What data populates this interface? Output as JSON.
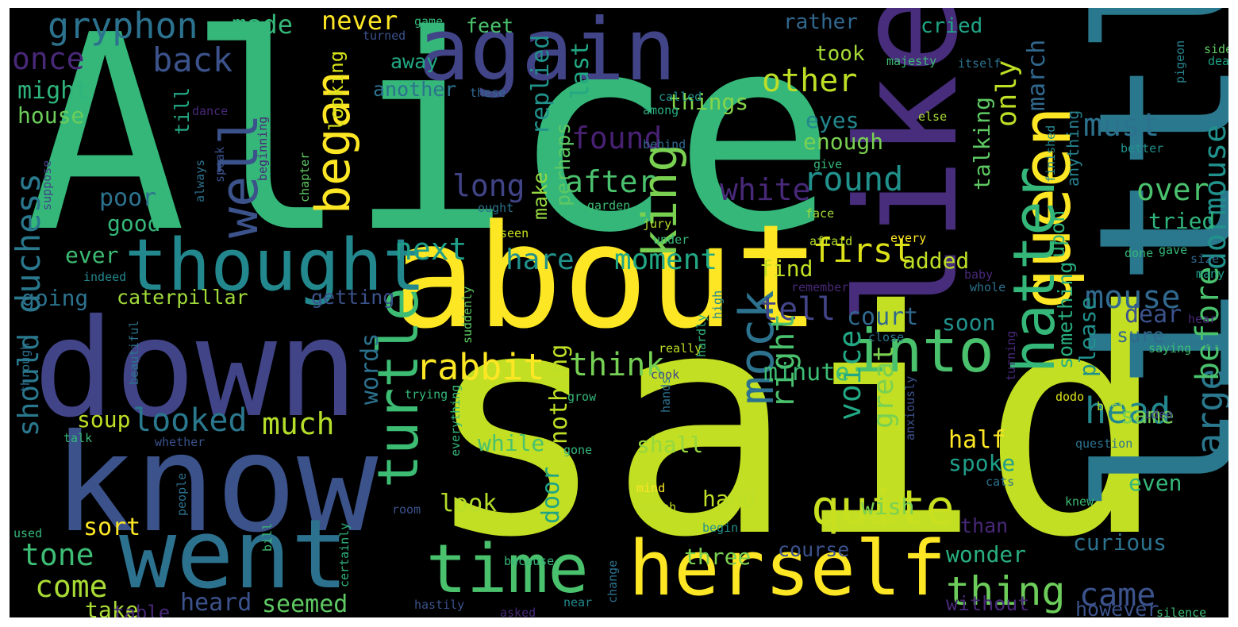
{
  "wordcloud": {
    "background": "#000000",
    "words": [
      {
        "text": "Alice",
        "color": "#35b779"
      },
      {
        "text": "said",
        "color": "#c2df23"
      },
      {
        "text": "little",
        "color": "#2a788e"
      },
      {
        "text": "about",
        "color": "#fde725"
      },
      {
        "text": "like",
        "color": "#472d7b"
      },
      {
        "text": "down",
        "color": "#414487"
      },
      {
        "text": "know",
        "color": "#3b528b"
      },
      {
        "text": "went",
        "color": "#2c728e"
      },
      {
        "text": "again",
        "color": "#414487"
      },
      {
        "text": "herself",
        "color": "#fde725"
      },
      {
        "text": "thought",
        "color": "#23888e"
      },
      {
        "text": "queen",
        "color": "#fde725"
      },
      {
        "text": "time",
        "color": "#4ac16d"
      },
      {
        "text": "into",
        "color": "#4ac16d"
      },
      {
        "text": "turtle",
        "color": "#3dbc74"
      },
      {
        "text": "hatter",
        "color": "#35b779"
      },
      {
        "text": "king",
        "color": "#7ad151"
      },
      {
        "text": "mock",
        "color": "#2c728e"
      },
      {
        "text": "began",
        "color": "#fde725"
      },
      {
        "text": "well",
        "color": "#3b528b"
      },
      {
        "text": "quite",
        "color": "#c8e020"
      },
      {
        "text": "thing",
        "color": "#6ccd5a"
      },
      {
        "text": "large",
        "color": "#2a788e"
      },
      {
        "text": "before",
        "color": "#4ac16d"
      },
      {
        "text": "rabbit",
        "color": "#fde725"
      },
      {
        "text": "gryphon",
        "color": "#2c728e"
      },
      {
        "text": "round",
        "color": "#21918c"
      },
      {
        "text": "first",
        "color": "#dde318"
      },
      {
        "text": "came",
        "color": "#3b528b"
      },
      {
        "text": "head",
        "color": "#23888e"
      },
      {
        "text": "looked",
        "color": "#2a788e"
      },
      {
        "text": "think",
        "color": "#75d054"
      },
      {
        "text": "duchess",
        "color": "#2a788e"
      },
      {
        "text": "mouse",
        "color": "#31688e"
      },
      {
        "text": "voice",
        "color": "#22a884"
      },
      {
        "text": "great",
        "color": "#7ad151"
      },
      {
        "text": "nothing",
        "color": "#bddf26"
      },
      {
        "text": "dormouse",
        "color": "#21918c"
      },
      {
        "text": "found",
        "color": "#482173"
      },
      {
        "text": "after",
        "color": "#4ac16d"
      },
      {
        "text": "only",
        "color": "#bddf26"
      },
      {
        "text": "back",
        "color": "#3b528b"
      },
      {
        "text": "once",
        "color": "#482878"
      },
      {
        "text": "never",
        "color": "#fde725"
      },
      {
        "text": "made",
        "color": "#35b779"
      },
      {
        "text": "other",
        "color": "#bddf26"
      },
      {
        "text": "must",
        "color": "#2c728e"
      },
      {
        "text": "over",
        "color": "#4ac16d"
      },
      {
        "text": "tell",
        "color": "#414487"
      },
      {
        "text": "white",
        "color": "#482878"
      },
      {
        "text": "long",
        "color": "#414487"
      },
      {
        "text": "next",
        "color": "#1f9e89"
      },
      {
        "text": "hare",
        "color": "#21918c"
      },
      {
        "text": "moment",
        "color": "#22a884"
      },
      {
        "text": "right",
        "color": "#4ac16d"
      },
      {
        "text": "much",
        "color": "#b5de2b"
      },
      {
        "text": "come",
        "color": "#a8db34"
      },
      {
        "text": "tone",
        "color": "#3dbc74"
      },
      {
        "text": "should",
        "color": "#2a788e"
      },
      {
        "text": "last",
        "color": "#22a884"
      },
      {
        "text": "march",
        "color": "#31688e"
      },
      {
        "text": "replied",
        "color": "#21918c"
      },
      {
        "text": "looking",
        "color": "#d8e219"
      },
      {
        "text": "things",
        "color": "#86d549"
      },
      {
        "text": "another",
        "color": "#2c728e"
      },
      {
        "text": "away",
        "color": "#22a884"
      },
      {
        "text": "feet",
        "color": "#4ac16d"
      },
      {
        "text": "took",
        "color": "#a5db36"
      },
      {
        "text": "rather",
        "color": "#31688e"
      },
      {
        "text": "cried",
        "color": "#20a486"
      },
      {
        "text": "eyes",
        "color": "#23888e"
      },
      {
        "text": "enough",
        "color": "#7ad151"
      },
      {
        "text": "talking",
        "color": "#5ec962"
      },
      {
        "text": "anything",
        "color": "#26828e"
      },
      {
        "text": "tried",
        "color": "#2fb47c"
      },
      {
        "text": "poor",
        "color": "#2c728e"
      },
      {
        "text": "good",
        "color": "#35b779"
      },
      {
        "text": "might",
        "color": "#2fb47c"
      },
      {
        "text": "house",
        "color": "#6ccd5a"
      },
      {
        "text": "till",
        "color": "#22a884"
      },
      {
        "text": "make",
        "color": "#95d840"
      },
      {
        "text": "perhaps",
        "color": "#5ec962"
      },
      {
        "text": "caterpillar",
        "color": "#a0da39"
      },
      {
        "text": "going",
        "color": "#2c728e"
      },
      {
        "text": "ever",
        "color": "#3dbc74"
      },
      {
        "text": "getting",
        "color": "#3b528b"
      },
      {
        "text": "find",
        "color": "#c2df23"
      },
      {
        "text": "added",
        "color": "#bddf26"
      },
      {
        "text": "court",
        "color": "#31688e"
      },
      {
        "text": "dear",
        "color": "#3b528b"
      },
      {
        "text": "soon",
        "color": "#21918c"
      },
      {
        "text": "sure",
        "color": "#31688e"
      },
      {
        "text": "please",
        "color": "#21918c"
      },
      {
        "text": "something",
        "color": "#29af7f"
      },
      {
        "text": "upon",
        "color": "#2fb47c"
      },
      {
        "text": "minute",
        "color": "#3dbc74"
      },
      {
        "text": "words",
        "color": "#2c728e"
      },
      {
        "text": "soup",
        "color": "#bddf26"
      },
      {
        "text": "while",
        "color": "#4ac16d"
      },
      {
        "text": "shall",
        "color": "#95d840"
      },
      {
        "text": "hand",
        "color": "#bddf26"
      },
      {
        "text": "look",
        "color": "#b5de2b"
      },
      {
        "text": "spoke",
        "color": "#1f9e89"
      },
      {
        "text": "half",
        "color": "#fde725"
      },
      {
        "text": "wish",
        "color": "#7ad151"
      },
      {
        "text": "same",
        "color": "#75d054"
      },
      {
        "text": "even",
        "color": "#35b779"
      },
      {
        "text": "curious",
        "color": "#2c728e"
      },
      {
        "text": "wonder",
        "color": "#29af7f"
      },
      {
        "text": "course",
        "color": "#3b528b"
      },
      {
        "text": "three",
        "color": "#7ad151"
      },
      {
        "text": "door",
        "color": "#20a486"
      },
      {
        "text": "heard",
        "color": "#3b528b"
      },
      {
        "text": "seemed",
        "color": "#5ec962"
      },
      {
        "text": "take",
        "color": "#a8db34"
      },
      {
        "text": "table",
        "color": "#482878"
      },
      {
        "text": "sort",
        "color": "#fde725"
      },
      {
        "text": "without",
        "color": "#482878"
      },
      {
        "text": "however",
        "color": "#3b528b"
      },
      {
        "text": "than",
        "color": "#482878"
      },
      {
        "text": "majesty",
        "color": "#3dbc74"
      },
      {
        "text": "side",
        "color": "#5ec962"
      },
      {
        "text": "deal",
        "color": "#20a486"
      },
      {
        "text": "pigeon",
        "color": "#26828e"
      },
      {
        "text": "itself",
        "color": "#2c728e"
      },
      {
        "text": "game",
        "color": "#35b779"
      },
      {
        "text": "turned",
        "color": "#3b528b"
      },
      {
        "text": "these",
        "color": "#31688e"
      },
      {
        "text": "called",
        "color": "#21918c"
      },
      {
        "text": "among",
        "color": "#29af7f"
      },
      {
        "text": "else",
        "color": "#a8db34"
      },
      {
        "text": "dance",
        "color": "#482878"
      },
      {
        "text": "chapter",
        "color": "#5ec962"
      },
      {
        "text": "behind",
        "color": "#31688e"
      },
      {
        "text": "still",
        "color": "#35b779"
      },
      {
        "text": "give",
        "color": "#35b779"
      },
      {
        "text": "finished",
        "color": "#23888e"
      },
      {
        "text": "better",
        "color": "#21918c"
      },
      {
        "text": "always",
        "color": "#2c728e"
      },
      {
        "text": "speak",
        "color": "#3b528b"
      },
      {
        "text": "suppose",
        "color": "#414487"
      },
      {
        "text": "beginning",
        "color": "#482878"
      },
      {
        "text": "garden",
        "color": "#3dbc74"
      },
      {
        "text": "ought",
        "color": "#2c728e"
      },
      {
        "text": "seen",
        "color": "#c8e020"
      },
      {
        "text": "jury",
        "color": "#b5de2b"
      },
      {
        "text": "under",
        "color": "#35b779"
      },
      {
        "text": "face",
        "color": "#a0da39"
      },
      {
        "text": "afraid",
        "color": "#b5de2b"
      },
      {
        "text": "every",
        "color": "#fde725"
      },
      {
        "text": "gave",
        "color": "#35b779"
      },
      {
        "text": "done",
        "color": "#35b779"
      },
      {
        "text": "size",
        "color": "#31688e"
      },
      {
        "text": "many",
        "color": "#1f9e89"
      },
      {
        "text": "baby",
        "color": "#482878"
      },
      {
        "text": "indeed",
        "color": "#23888e"
      },
      {
        "text": "remember",
        "color": "#482878"
      },
      {
        "text": "suddenly",
        "color": "#5ec962"
      },
      {
        "text": "beautiful",
        "color": "#2c728e"
      },
      {
        "text": "hardly",
        "color": "#2fb47c"
      },
      {
        "text": "whole",
        "color": "#2c728e"
      },
      {
        "text": "high",
        "color": "#23888e"
      },
      {
        "text": "hear",
        "color": "#482878"
      },
      {
        "text": "kept",
        "color": "#2c728e"
      },
      {
        "text": "close",
        "color": "#2a788e"
      },
      {
        "text": "saying",
        "color": "#3dbc74"
      },
      {
        "text": "through",
        "color": "#2c728e"
      },
      {
        "text": "really",
        "color": "#bddf26"
      },
      {
        "text": "cook",
        "color": "#414487"
      },
      {
        "text": "hands",
        "color": "#2c728e"
      },
      {
        "text": "turning",
        "color": "#482878"
      },
      {
        "text": "trying",
        "color": "#35b779"
      },
      {
        "text": "grow",
        "color": "#35b779"
      },
      {
        "text": "dodo",
        "color": "#dde318"
      },
      {
        "text": "best",
        "color": "#b5de2b"
      },
      {
        "text": "idea",
        "color": "#414487"
      },
      {
        "text": "talk",
        "color": "#35b779"
      },
      {
        "text": "whether",
        "color": "#3b528b"
      },
      {
        "text": "everything",
        "color": "#35b779"
      },
      {
        "text": "gone",
        "color": "#35b779"
      },
      {
        "text": "anxiously",
        "color": "#3b528b"
      },
      {
        "text": "question",
        "color": "#2c728e"
      },
      {
        "text": "cats",
        "color": "#2c728e"
      },
      {
        "text": "knew",
        "color": "#3dbc74"
      },
      {
        "text": "mind",
        "color": "#fde725"
      },
      {
        "text": "dinah",
        "color": "#bddf26"
      },
      {
        "text": "begin",
        "color": "#21918c"
      },
      {
        "text": "people",
        "color": "#2c728e"
      },
      {
        "text": "room",
        "color": "#3b528b"
      },
      {
        "text": "used",
        "color": "#35b779"
      },
      {
        "text": "certainly",
        "color": "#2fb47c"
      },
      {
        "text": "because",
        "color": "#35b779"
      },
      {
        "text": "change",
        "color": "#2c728e"
      },
      {
        "text": "bill",
        "color": "#3dbc74"
      },
      {
        "text": "hastily",
        "color": "#3b528b"
      },
      {
        "text": "asked",
        "color": "#482878"
      },
      {
        "text": "near",
        "color": "#23888e"
      },
      {
        "text": "left",
        "color": "#c2df23"
      },
      {
        "text": "silence",
        "color": "#3dbc74"
      }
    ]
  }
}
